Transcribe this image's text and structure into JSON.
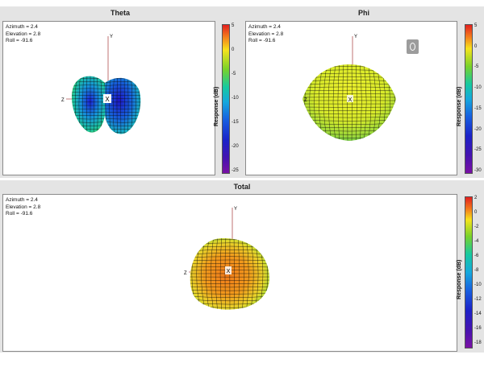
{
  "theta": {
    "title": "Theta",
    "info": {
      "azimuth": "Azimuth = 2.4",
      "elevation": "Elevation = 2.8",
      "roll": "Roll = -91.6"
    },
    "axes": {
      "x": "X",
      "y": "Y",
      "z": "Z"
    },
    "colorbar": {
      "label": "Response (dB)",
      "ticks": [
        "5",
        "0",
        "-5",
        "-10",
        "-15",
        "-20",
        "-25"
      ]
    }
  },
  "phi": {
    "title": "Phi",
    "info": {
      "azimuth": "Azimuth = 2.4",
      "elevation": "Elevation = 2.8",
      "roll": "Roll = -91.6"
    },
    "axes": {
      "x": "X",
      "y": "Y",
      "z": "Z"
    },
    "colorbar": {
      "label": "Response (dB)",
      "ticks": [
        "5",
        "0",
        "-5",
        "-10",
        "-15",
        "-20",
        "-25",
        "-30"
      ]
    }
  },
  "total": {
    "title": "Total",
    "info": {
      "azimuth": "Azimuth = 2.4",
      "elevation": "Elevation = 2.8",
      "roll": "Roll = -91.6"
    },
    "axes": {
      "x": "X",
      "y": "Y",
      "z": "Z"
    },
    "colorbar": {
      "label": "Response (dB)",
      "ticks": [
        "2",
        "0",
        "-2",
        "-4",
        "-6",
        "-8",
        "-10",
        "-12",
        "-14",
        "-16",
        "-18"
      ]
    }
  },
  "colors": {
    "frame": "#e4e4e4",
    "mesh": "#1a1a1a",
    "axis": "#b05050"
  },
  "icons": {
    "phi_button": "rotate-icon"
  }
}
